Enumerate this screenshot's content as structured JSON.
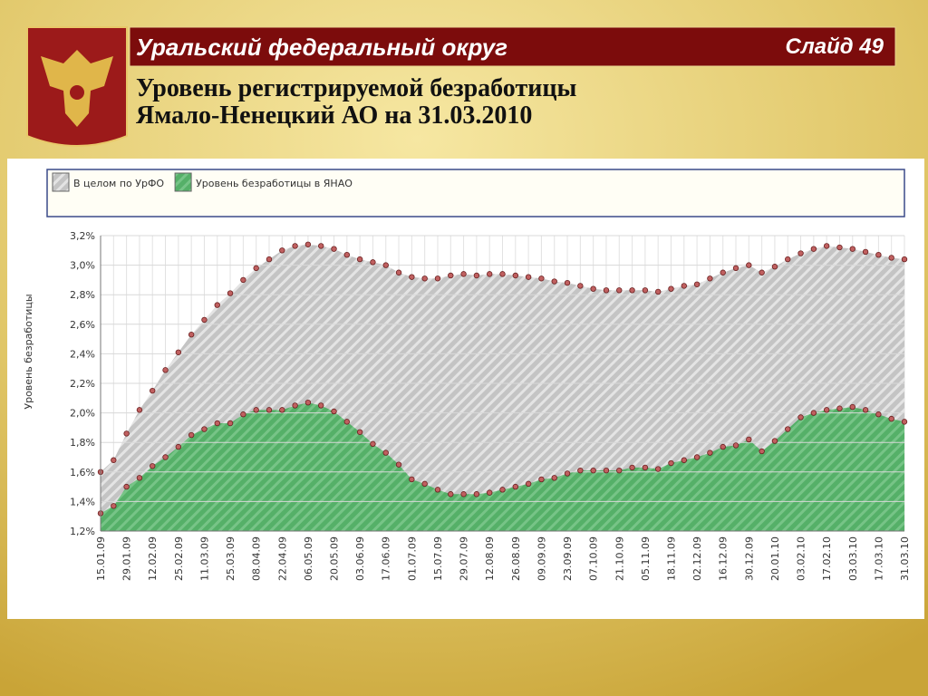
{
  "header": {
    "region": "Уральский федеральный округ",
    "slide": "Слайд 49",
    "title_line1": "Уровень регистрируемой безработицы",
    "title_line2": "Ямало-Ненецкий АО на 31.03.2010"
  },
  "chart_data": {
    "type": "area",
    "ylabel": "Уровень безработицы",
    "categories": [
      "15.01.09",
      null,
      "29.01.09",
      null,
      "12.02.09",
      null,
      "25.02.09",
      null,
      "11.03.09",
      null,
      "25.03.09",
      null,
      "08.04.09",
      null,
      "22.04.09",
      null,
      "06.05.09",
      null,
      "20.05.09",
      null,
      "03.06.09",
      null,
      "17.06.09",
      null,
      "01.07.09",
      null,
      "15.07.09",
      null,
      "29.07.09",
      null,
      "12.08.09",
      null,
      "26.08.09",
      null,
      "09.09.09",
      null,
      "23.09.09",
      null,
      "07.10.09",
      null,
      "21.10.09",
      null,
      "05.11.09",
      null,
      "18.11.09",
      null,
      "02.12.09",
      null,
      "16.12.09",
      null,
      "30.12.09",
      null,
      "20.01.10",
      null,
      "03.02.10",
      null,
      "17.02.10",
      null,
      "03.03.10",
      null,
      "17.03.10",
      null,
      "31.03.10"
    ],
    "series": [
      {
        "name": "В целом по УрФО",
        "color": "#c8c8c8",
        "values": [
          1.6,
          1.68,
          1.86,
          2.02,
          2.15,
          2.29,
          2.41,
          2.53,
          2.63,
          2.73,
          2.81,
          2.9,
          2.98,
          3.04,
          3.1,
          3.13,
          3.14,
          3.13,
          3.11,
          3.07,
          3.04,
          3.02,
          3.0,
          2.95,
          2.92,
          2.91,
          2.91,
          2.93,
          2.94,
          2.93,
          2.94,
          2.94,
          2.93,
          2.92,
          2.91,
          2.89,
          2.88,
          2.86,
          2.84,
          2.83,
          2.83,
          2.83,
          2.83,
          2.82,
          2.84,
          2.86,
          2.87,
          2.91,
          2.95,
          2.98,
          3.0,
          2.95,
          2.99,
          3.04,
          3.08,
          3.11,
          3.13,
          3.12,
          3.11,
          3.09,
          3.07,
          3.05,
          3.04
        ]
      },
      {
        "name": "Уровень безработицы в ЯНАО",
        "color": "#5cb870",
        "values": [
          1.32,
          1.37,
          1.5,
          1.56,
          1.64,
          1.7,
          1.77,
          1.85,
          1.89,
          1.93,
          1.93,
          1.99,
          2.02,
          2.02,
          2.02,
          2.05,
          2.07,
          2.05,
          2.01,
          1.94,
          1.87,
          1.79,
          1.73,
          1.65,
          1.55,
          1.52,
          1.48,
          1.45,
          1.45,
          1.45,
          1.46,
          1.48,
          1.5,
          1.52,
          1.55,
          1.56,
          1.59,
          1.61,
          1.61,
          1.61,
          1.61,
          1.63,
          1.63,
          1.62,
          1.66,
          1.68,
          1.7,
          1.73,
          1.77,
          1.78,
          1.82,
          1.74,
          1.81,
          1.89,
          1.97,
          2.0,
          2.02,
          2.03,
          2.04,
          2.02,
          1.99,
          1.96,
          1.94
        ]
      }
    ],
    "ylim": [
      1.2,
      3.2
    ],
    "yticks": [
      {
        "value": 1.2,
        "label": "1,2%"
      },
      {
        "value": 1.4,
        "label": "1,4%"
      },
      {
        "value": 1.6,
        "label": "1,6%"
      },
      {
        "value": 1.8,
        "label": "1,8%"
      },
      {
        "value": 2.0,
        "label": "2,0%"
      },
      {
        "value": 2.2,
        "label": "2,2%"
      },
      {
        "value": 2.4,
        "label": "2,4%"
      },
      {
        "value": 2.6,
        "label": "2,6%"
      },
      {
        "value": 2.8,
        "label": "2,8%"
      },
      {
        "value": 3.0,
        "label": "3,0%"
      },
      {
        "value": 3.2,
        "label": "3,2%"
      }
    ],
    "grid": true,
    "legend": "top"
  }
}
